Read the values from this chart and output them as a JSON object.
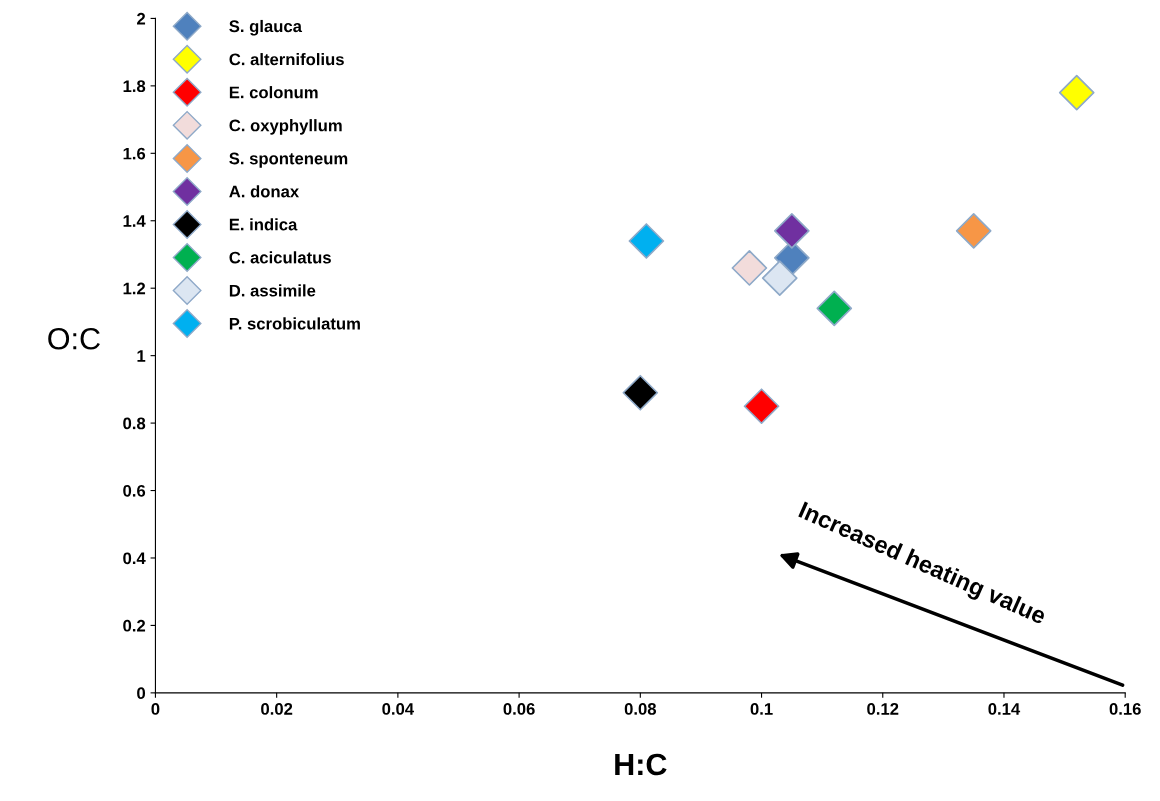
{
  "chart_data": {
    "type": "scatter",
    "xlabel": "H:C",
    "ylabel": "O:C",
    "marker": "diamond",
    "legend": "top left",
    "grid": false,
    "xlim": [
      0,
      0.16
    ],
    "xticks": [
      0,
      0.02,
      0.04,
      0.06,
      0.08,
      0.1,
      0.12,
      0.14,
      0.16
    ],
    "ylim": [
      0,
      2
    ],
    "yticks": [
      0,
      0.2,
      0.4,
      0.6,
      0.8,
      1,
      1.2,
      1.4,
      1.6,
      1.8,
      2
    ],
    "series": [
      {
        "name": "S. glauca",
        "color": "#4f81bd",
        "x": [
          0.105
        ],
        "values": [
          1.29
        ]
      },
      {
        "name": "C. alternifolius",
        "color": "#ffff00",
        "x": [
          0.152
        ],
        "values": [
          1.78
        ]
      },
      {
        "name": "E. colonum",
        "color": "#ff0000",
        "x": [
          0.1
        ],
        "values": [
          0.85
        ]
      },
      {
        "name": "C. oxyphyllum",
        "color": "#f2dcdb",
        "x": [
          0.098
        ],
        "values": [
          1.26
        ]
      },
      {
        "name": "S. sponteneum",
        "color": "#f79646",
        "x": [
          0.135
        ],
        "values": [
          1.37
        ]
      },
      {
        "name": "A. donax",
        "color": "#7030a0",
        "x": [
          0.105
        ],
        "values": [
          1.37
        ]
      },
      {
        "name": "E. indica",
        "color": "#000000",
        "x": [
          0.08
        ],
        "values": [
          0.89
        ]
      },
      {
        "name": "C. aciculatus",
        "color": "#00b050",
        "x": [
          0.112
        ],
        "values": [
          1.14
        ]
      },
      {
        "name": "D. assimile",
        "color": "#dce6f2",
        "x": [
          0.103
        ],
        "values": [
          1.23
        ]
      },
      {
        "name": "P. scrobiculatum",
        "color": "#00b0f0",
        "x": [
          0.081
        ],
        "values": [
          1.34
        ]
      }
    ],
    "annotations": [
      "Increased heating value"
    ]
  }
}
